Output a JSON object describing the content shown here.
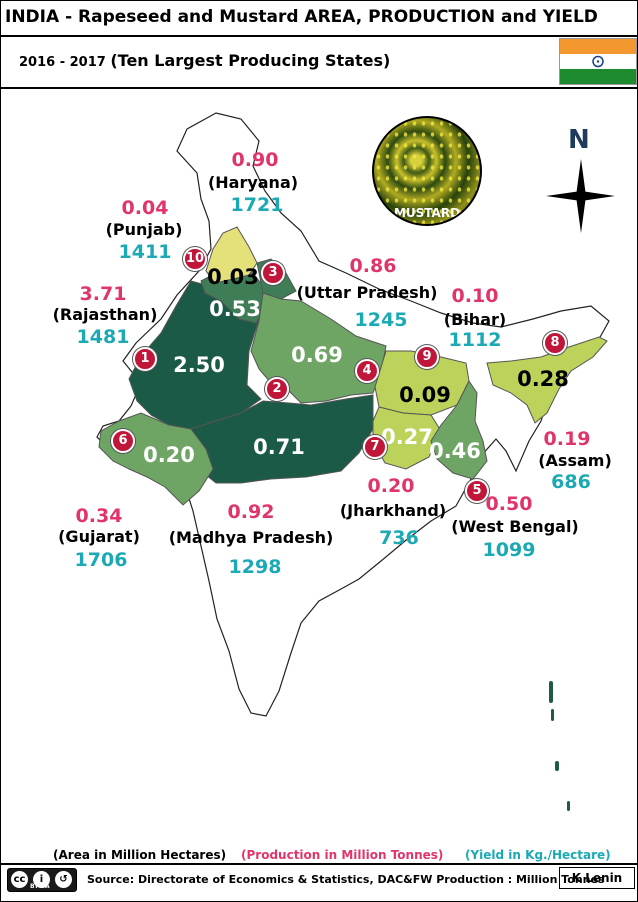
{
  "header": {
    "title": "INDIA - Rapeseed and Mustard  AREA, PRODUCTION and  YIELD",
    "year": "2016 - 2017",
    "subtitle": "(Ten Largest Producing States)"
  },
  "flag_colors": {
    "saffron": "#f3982f",
    "white": "#ffffff",
    "green": "#1e8a2e",
    "chakra": "#1c3f8c"
  },
  "photo": {
    "label": "MUSTARD"
  },
  "compass": {
    "north": "N"
  },
  "shading": {
    "dark": "#1c5a48",
    "medium": "#3f7d56",
    "light": "#6ea564",
    "pale": "#bcd35b",
    "yellow": "#e4e07a",
    "country": "#ffffff"
  },
  "states": [
    {
      "rank": "1",
      "name": "(Rajasthan)",
      "area": "2.50",
      "production": "3.71",
      "yield": "1481"
    },
    {
      "rank": "2",
      "name": "(Madhya Pradesh)",
      "area": "0.71",
      "production": "0.92",
      "yield": "1298"
    },
    {
      "rank": "3",
      "name": "(Haryana)",
      "area": "0.53",
      "production": "0.90",
      "yield": "1721"
    },
    {
      "rank": "4",
      "name": "(Uttar  Pradesh)",
      "area": "0.69",
      "production": "0.86",
      "yield": "1245"
    },
    {
      "rank": "5",
      "name": "(West Bengal)",
      "area": "0.46",
      "production": "0.50",
      "yield": "1099"
    },
    {
      "rank": "6",
      "name": "(Gujarat)",
      "area": "0.20",
      "production": "0.34",
      "yield": "1706"
    },
    {
      "rank": "7",
      "name": "(Jharkhand)",
      "area": "0.27",
      "production": "0.20",
      "yield": "736"
    },
    {
      "rank": "8",
      "name": "(Assam)",
      "area": "0.28",
      "production": "0.19",
      "yield": "686"
    },
    {
      "rank": "9",
      "name": "(Bihar)",
      "area": "0.09",
      "production": "0.10",
      "yield": "1112"
    },
    {
      "rank": "10",
      "name": "(Punjab)",
      "area": "0.03",
      "production": "0.04",
      "yield": "1411"
    }
  ],
  "legend": {
    "area": "(Area in Million Hectares)",
    "production": "(Production in Million Tonnes)",
    "yield": "(Yield in Kg./Hectare)"
  },
  "footer": {
    "license": "BY SA",
    "source": "Source: Directorate of Economics & Statistics, DAC&FW  Production : Million Tonnes",
    "author": "K Lenin"
  }
}
